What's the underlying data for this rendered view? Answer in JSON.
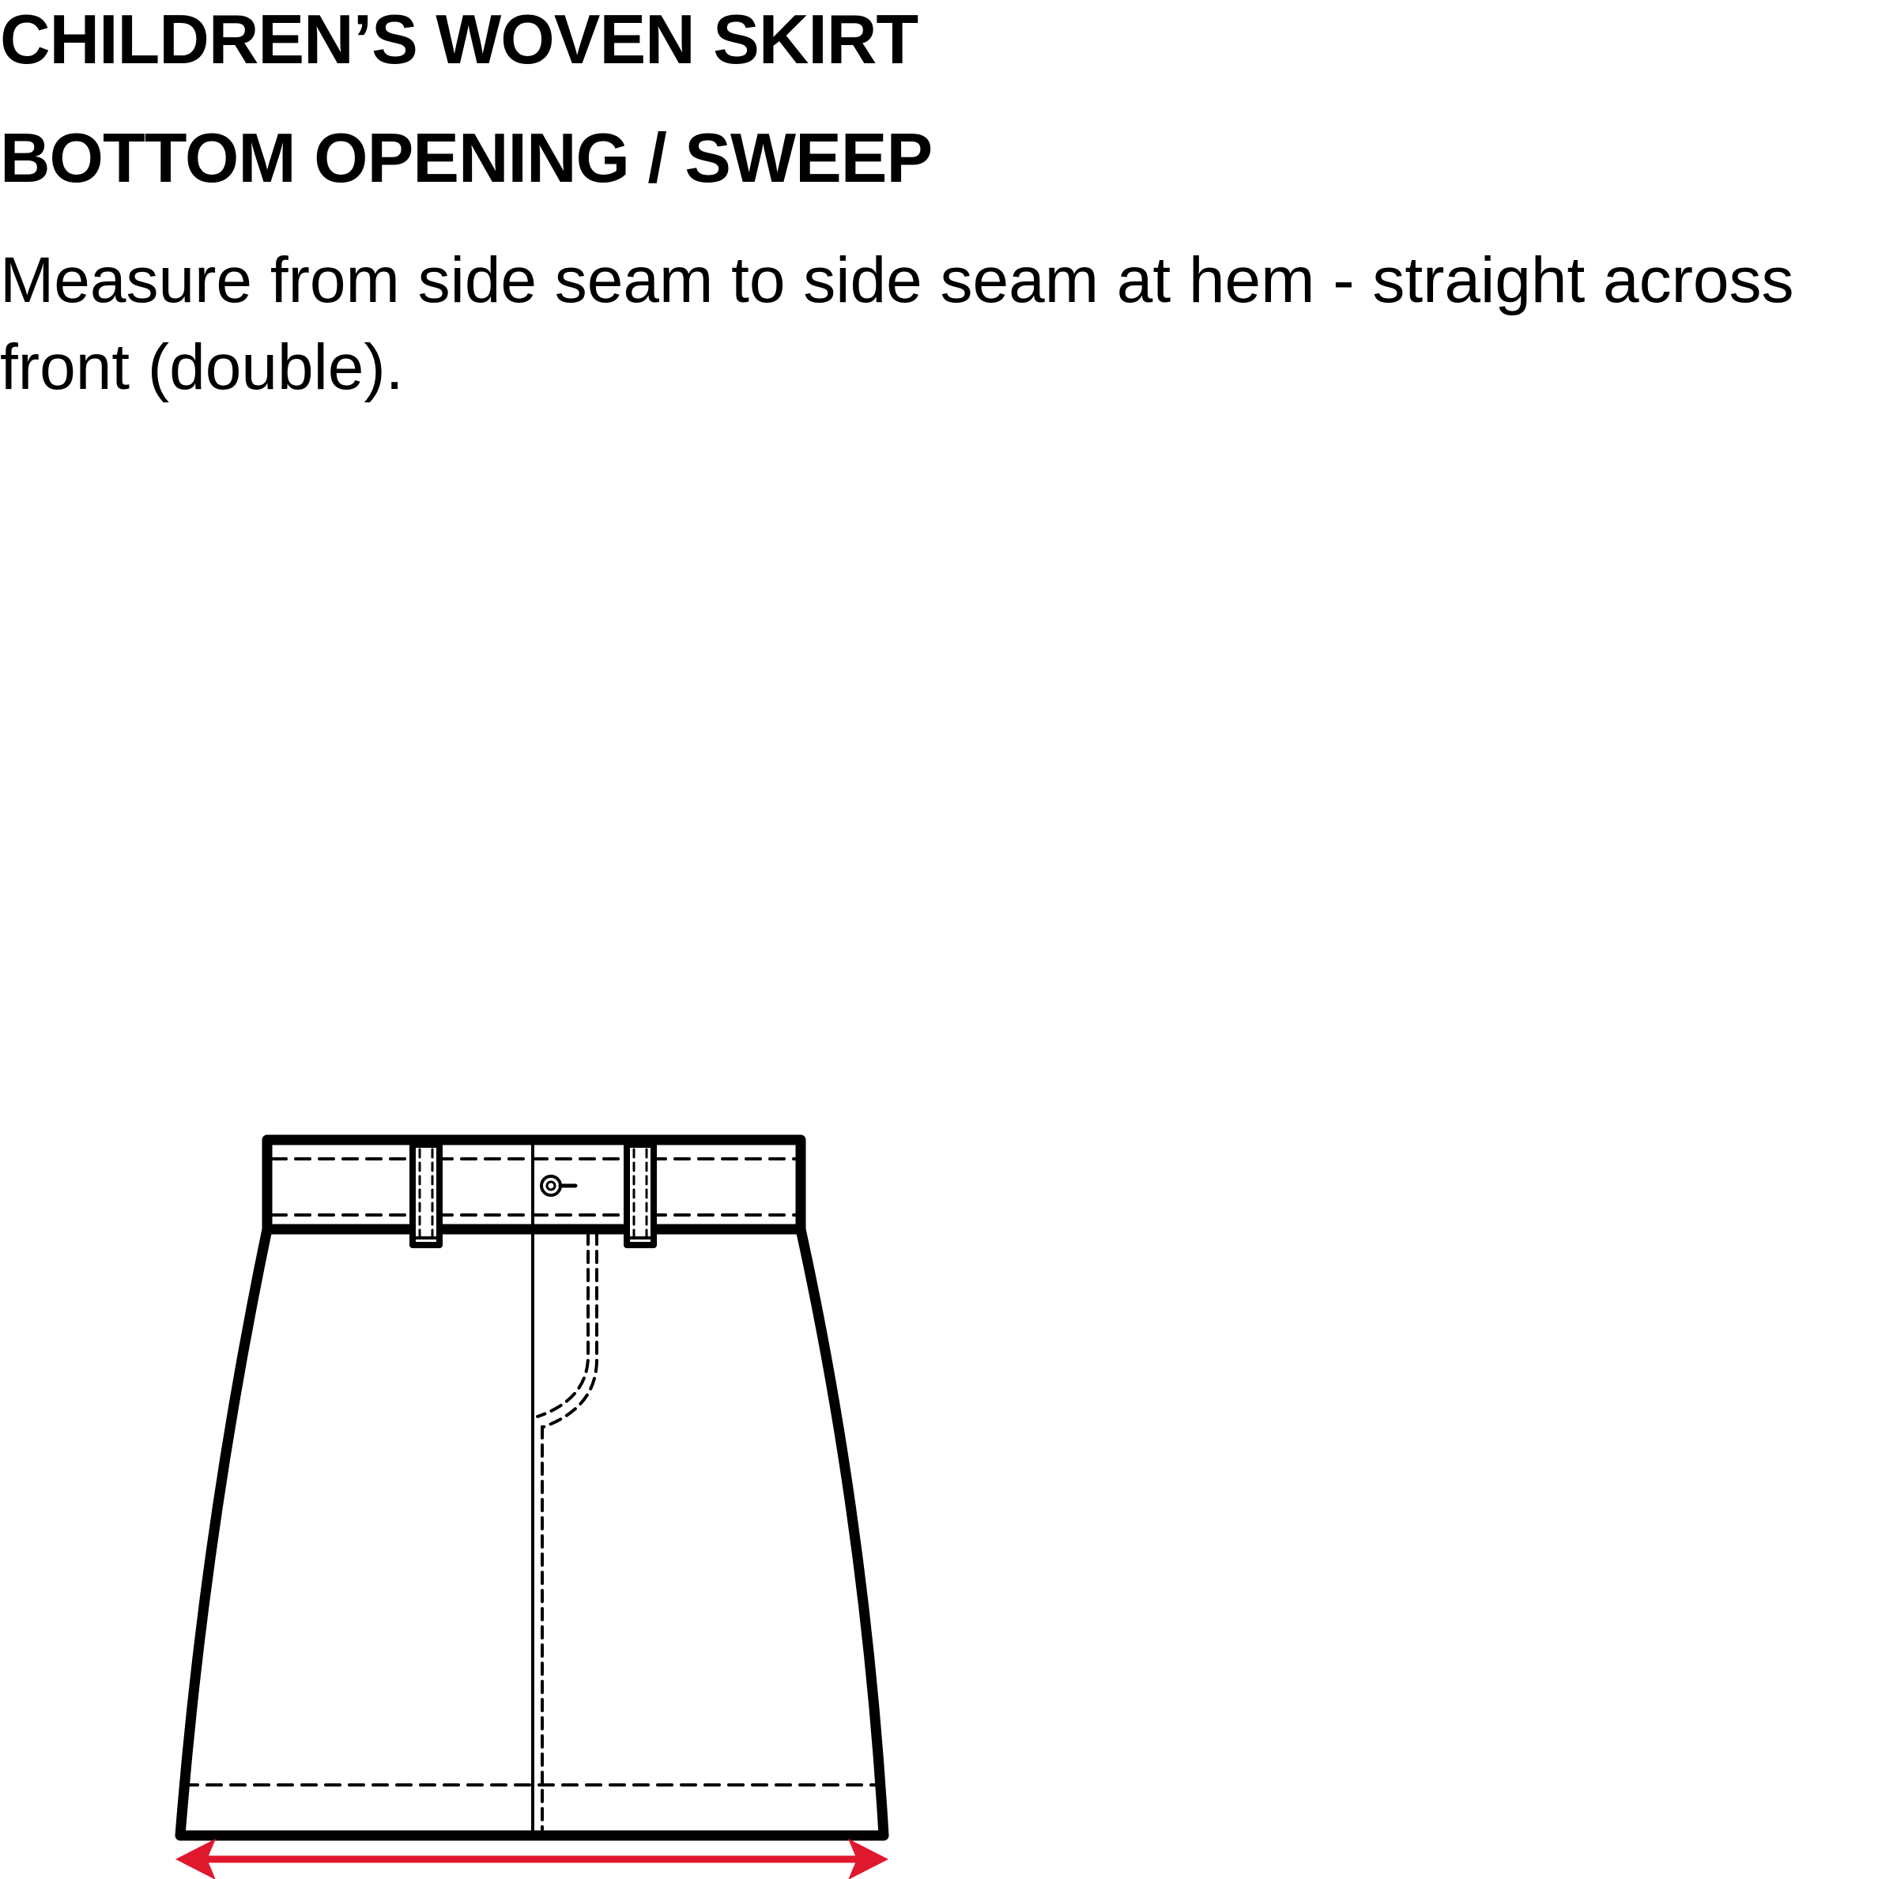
{
  "header": {
    "title": "CHILDREN’S WOVEN SKIRT",
    "subtitle": "BOTTOM OPENING / SWEEP",
    "instruction": "Measure from side seam to side seam at hem - straight across front (double)."
  },
  "diagram": {
    "garment_outline_color": "#000000",
    "measurement_arrow_color": "#e0182d"
  }
}
